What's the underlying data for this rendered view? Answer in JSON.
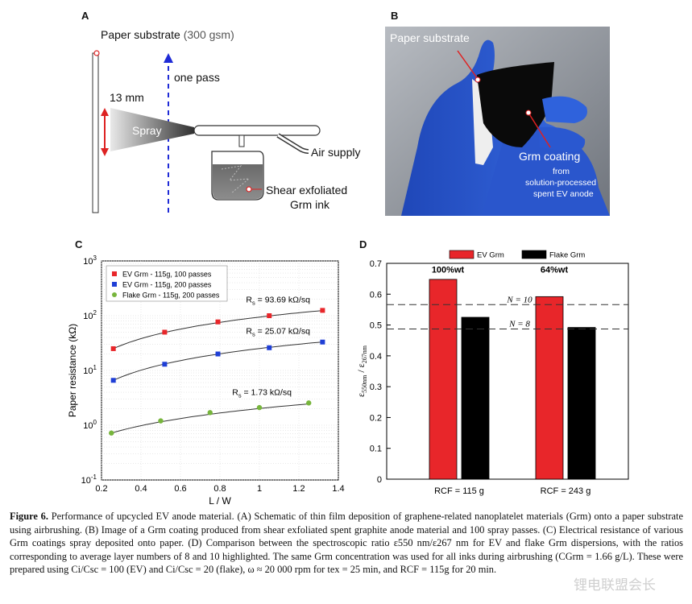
{
  "panels": {
    "a": {
      "letter": "A",
      "paper_label": "Paper substrate",
      "paper_gsm": "(300 gsm)",
      "one_pass": "one pass",
      "distance": "13 mm",
      "spray": "Spray",
      "air_supply": "Air supply",
      "ink_line1": "Shear exfoliated",
      "ink_line2": "Grm ink"
    },
    "b": {
      "letter": "B",
      "paper_label": "Paper substrate",
      "coating_label": "Grm coating",
      "from_line1": "from",
      "from_line2": "solution-processed",
      "from_line3": "spent EV anode"
    },
    "c": {
      "letter": "C"
    },
    "d": {
      "letter": "D"
    }
  },
  "colors": {
    "red": "#e8262a",
    "blue": "#1f3fd6",
    "green": "#77b53c",
    "black": "#000000"
  },
  "chart_data": [
    {
      "type": "scatter",
      "panel": "C",
      "xlabel": "L / W",
      "ylabel": "Paper resistance (kΩ)",
      "xlim": [
        0.2,
        1.4
      ],
      "ylim_log10": [
        -1,
        3
      ],
      "y_scale": "log",
      "x_ticks": [
        "0.2",
        "0.4",
        "0.6",
        "0.8",
        "1",
        "1.2",
        "1.4"
      ],
      "y_tick_bases": [
        "10",
        "10",
        "10",
        "10",
        "10"
      ],
      "y_tick_exponents": [
        "-1",
        "0",
        "1",
        "2",
        "3"
      ],
      "legend_placement": "top-left",
      "series": [
        {
          "name": "EV Grm - 115g, 100 passes",
          "color": "#e8262a",
          "x": [
            0.26,
            0.52,
            0.79,
            1.05,
            1.32
          ],
          "y": [
            25,
            50,
            77,
            100,
            125
          ],
          "fit_label": "R",
          "fit_sub": "s",
          "fit_value": " = 93.69 kΩ/sq",
          "fit_slope": 93.69
        },
        {
          "name": "EV Grm - 115g, 200 passes",
          "color": "#1f3fd6",
          "x": [
            0.26,
            0.52,
            0.79,
            1.05,
            1.32
          ],
          "y": [
            6.6,
            13,
            20,
            26,
            33
          ],
          "fit_label": "R",
          "fit_sub": "s",
          "fit_value": " = 25.07 kΩ/sq",
          "fit_slope": 25.07
        },
        {
          "name": "Flake Grm - 115g, 200 passes",
          "color": "#77b53c",
          "x": [
            0.25,
            0.5,
            0.75,
            1.0,
            1.25
          ],
          "y": [
            0.72,
            1.2,
            1.7,
            2.1,
            2.55
          ],
          "fit_label": "R",
          "fit_sub": "s",
          "fit_value": " = 1.73 kΩ/sq",
          "fit_slope": 1.73
        }
      ]
    },
    {
      "type": "bar",
      "panel": "D",
      "ylabel_main": "ε",
      "ylabel_sub1": "550nm",
      "ylabel_mid": " / ε",
      "ylabel_sub2": "267nm",
      "ylim": [
        0,
        0.7
      ],
      "y_ticks": [
        "0",
        "0.1",
        "0.2",
        "0.3",
        "0.4",
        "0.5",
        "0.6",
        "0.7"
      ],
      "categories": [
        "RCF = 115 g",
        "RCF = 243 g"
      ],
      "series": [
        {
          "name": "EV Grm",
          "color": "#e8262a",
          "values": [
            0.648,
            0.592
          ]
        },
        {
          "name": "Flake Grm",
          "color": "#000000",
          "values": [
            0.525,
            0.492
          ]
        }
      ],
      "group_labels": [
        "100%wt",
        "64%wt"
      ],
      "ref_lines": [
        {
          "label": "N = 10",
          "value": 0.566
        },
        {
          "label": "N = 8",
          "value": 0.487
        }
      ],
      "legend_placement": "top"
    }
  ],
  "caption": {
    "fig": "Figure 6.",
    "text": " Performance of upcycled EV anode material. (A) Schematic of thin film deposition of graphene-related nanoplatelet materials (Grm) onto a paper substrate using airbrushing. (B) Image of a Grm coating produced from shear exfoliated spent graphite anode material and 100 spray passes. (C) Electrical resistance of various Grm coatings spray deposited onto paper. (D) Comparison between the spectroscopic ratio ε550 nm/ε267 nm for EV and flake Grm dispersions, with the ratios corresponding to average layer numbers of 8 and 10 highlighted. The same Grm concentration was used for all inks during airbrushing (CGrm = 1.66 g/L). These were prepared using Ci/Csc = 100 (EV) and Ci/Csc = 20 (flake), ω ≈ 20 000 rpm for tex = 25 min, and RCF = 115g for 20 min."
  },
  "watermark": "锂电联盟会长"
}
